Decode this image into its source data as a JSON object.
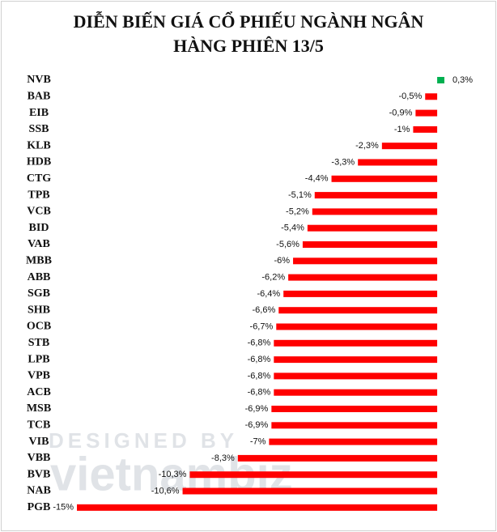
{
  "chart_data": {
    "type": "bar",
    "orientation": "horizontal",
    "title": "DIỄN BIẾN GIÁ CỔ PHIẾU NGÀNH NGÂN HÀNG PHIÊN 13/5",
    "categories": [
      "NVB",
      "BAB",
      "EIB",
      "SSB",
      "KLB",
      "HDB",
      "CTG",
      "TPB",
      "VCB",
      "BID",
      "VAB",
      "MBB",
      "ABB",
      "SGB",
      "SHB",
      "OCB",
      "STB",
      "LPB",
      "VPB",
      "ACB",
      "MSB",
      "TCB",
      "VIB",
      "VBB",
      "BVB",
      "NAB",
      "PGB"
    ],
    "values": [
      0.3,
      -0.5,
      -0.9,
      -1,
      -2.3,
      -3.3,
      -4.4,
      -5.1,
      -5.2,
      -5.4,
      -5.6,
      -6,
      -6.2,
      -6.4,
      -6.6,
      -6.7,
      -6.8,
      -6.8,
      -6.8,
      -6.8,
      -6.9,
      -6.9,
      -7,
      -8.3,
      -10.3,
      -10.6,
      -15
    ],
    "value_labels": [
      "0,3%",
      "-0,5%",
      "-0,9%",
      "-1%",
      "-2,3%",
      "-3,3%",
      "-4,4%",
      "-5,1%",
      "-5,2%",
      "-5,4%",
      "-5,6%",
      "-6%",
      "-6,2%",
      "-6,4%",
      "-6,6%",
      "-6,7%",
      "-6,8%",
      "-6,8%",
      "-6,8%",
      "-6,8%",
      "-6,9%",
      "-6,9%",
      "-7%",
      "-8,3%",
      "-10,3%",
      "-10,6%",
      "-15%"
    ],
    "positive_color": "#00b050",
    "negative_color": "#ff0000",
    "xlim": [
      -15,
      0.3
    ],
    "watermark": [
      "DESIGNED BY",
      "vietnambiz"
    ]
  }
}
